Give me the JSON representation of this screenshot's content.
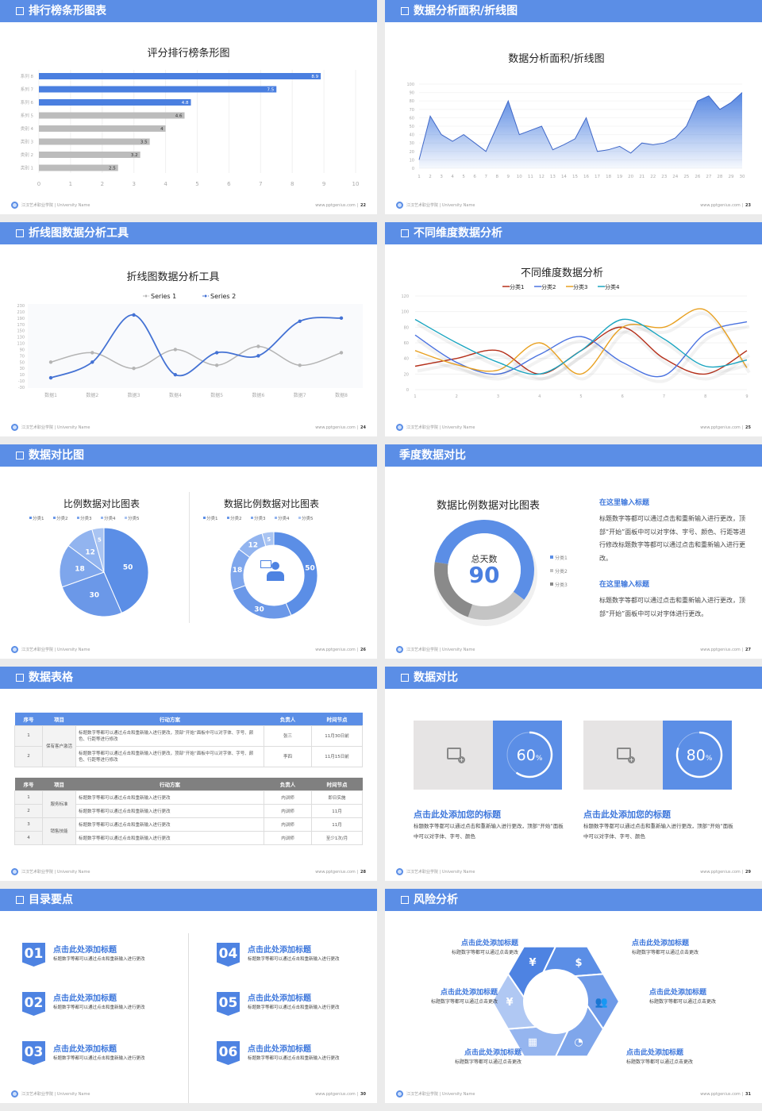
{
  "footer": {
    "school": "江汉艺术职业学院 | University Name",
    "url": "www.pptgenius.com"
  },
  "slides": [
    {
      "header": "排行榜条形图表",
      "page": "22"
    },
    {
      "header": "数据分析面积/折线图",
      "page": "23"
    },
    {
      "header": "折线图数据分析工具",
      "page": "24"
    },
    {
      "header": "不同维度数据分析",
      "page": "25"
    },
    {
      "header": "数据对比图",
      "page": "26"
    },
    {
      "header": "季度数据对比",
      "page": "27"
    },
    {
      "header": "数据表格",
      "page": "28"
    },
    {
      "header": "数据对比",
      "page": "29"
    },
    {
      "header": "目录要点",
      "page": "30"
    },
    {
      "header": "风险分析",
      "page": "31"
    }
  ],
  "chart_data": [
    {
      "type": "bar",
      "title": "评分排行榜条形图",
      "categories": [
        "系列 8",
        "系列 7",
        "系列 6",
        "系列 5",
        "类别 4",
        "类别 3",
        "类别 2",
        "类别 1"
      ],
      "values": [
        8.9,
        7.5,
        4.8,
        4.6,
        4,
        3.5,
        3.2,
        2.5
      ],
      "highlight_color": "#4a7fe0",
      "base_color": "#bcbcbc",
      "xlim": [
        0,
        10
      ],
      "xticks": [
        0,
        1,
        2,
        3,
        4,
        5,
        6,
        7,
        8,
        9,
        10
      ],
      "grid": true
    },
    {
      "type": "area",
      "title": "数据分析面积/折线图",
      "x": [
        1,
        2,
        3,
        4,
        5,
        6,
        7,
        8,
        9,
        10,
        11,
        12,
        13,
        14,
        15,
        16,
        17,
        18,
        19,
        20,
        21,
        22,
        23,
        24,
        25,
        26,
        27,
        28,
        29,
        30
      ],
      "values": [
        10,
        62,
        40,
        32,
        40,
        30,
        20,
        50,
        80,
        40,
        45,
        50,
        22,
        28,
        35,
        60,
        20,
        22,
        26,
        18,
        30,
        28,
        30,
        36,
        50,
        80,
        86,
        70,
        78,
        90
      ],
      "ylim": [
        0,
        100
      ],
      "yticks": [
        0,
        10,
        20,
        30,
        40,
        50,
        60,
        70,
        80,
        90,
        100
      ],
      "color": "#4a7fe0"
    },
    {
      "type": "line",
      "title": "折线图数据分析工具",
      "categories": [
        "数据1",
        "数据2",
        "数据3",
        "数据4",
        "数据5",
        "数据6",
        "数据7",
        "数据8"
      ],
      "series": [
        {
          "name": "Series 1",
          "values": [
            50,
            80,
            30,
            90,
            40,
            100,
            40,
            80
          ],
          "color": "#b4b4b4"
        },
        {
          "name": "Series 2",
          "values": [
            0,
            50,
            200,
            10,
            80,
            70,
            180,
            190
          ],
          "color": "#4472d4"
        }
      ],
      "ylim": [
        -30,
        230
      ],
      "yticks": [
        -30,
        -10,
        10,
        30,
        50,
        70,
        90,
        110,
        130,
        150,
        170,
        190,
        210,
        230
      ],
      "legend": "top"
    },
    {
      "type": "line",
      "title": "不同维度数据分析",
      "categories": [
        "1",
        "2",
        "3",
        "4",
        "5",
        "6",
        "7",
        "8",
        "9"
      ],
      "series": [
        {
          "name": "分类1",
          "values": [
            30,
            40,
            50,
            20,
            50,
            80,
            40,
            20,
            50
          ],
          "color": "#b5301b"
        },
        {
          "name": "分类2",
          "values": [
            70,
            35,
            20,
            45,
            68,
            35,
            18,
            72,
            87
          ],
          "color": "#4a72e0"
        },
        {
          "name": "分类3",
          "values": [
            50,
            32,
            25,
            60,
            20,
            80,
            80,
            102,
            28
          ],
          "color": "#e8a020"
        },
        {
          "name": "分类4",
          "values": [
            90,
            60,
            35,
            20,
            50,
            90,
            65,
            30,
            38
          ],
          "color": "#1ba5c0"
        }
      ],
      "ylim": [
        0,
        120
      ],
      "yticks": [
        0,
        20,
        40,
        60,
        80,
        100,
        120
      ],
      "legend": "top"
    },
    {
      "type": "pie",
      "title": "比例数据对比图表",
      "categories": [
        "分类1",
        "分类2",
        "分类3",
        "分类4",
        "分类5"
      ],
      "values": [
        50,
        30,
        18,
        12,
        5
      ],
      "colors": [
        "#5b8ee6",
        "#6b98e8",
        "#7ea6ec",
        "#92b4ef",
        "#a9c4f2"
      ],
      "legend": "top"
    },
    {
      "type": "pie",
      "donut": true,
      "title": "数据比例数据对比图表",
      "categories": [
        "分类1",
        "分类2",
        "分类3",
        "分类4",
        "分类5"
      ],
      "values": [
        50,
        30,
        18,
        12,
        5
      ],
      "colors": [
        "#5b8ee6",
        "#6b98e8",
        "#7ea6ec",
        "#92b4ef",
        "#a9c4f2"
      ],
      "legend": "top"
    },
    {
      "type": "pie",
      "donut": true,
      "title": "数据比例数据对比图表",
      "center_label": "总天数",
      "center_value": "90",
      "categories": [
        "分类1",
        "分类2",
        "分类3"
      ],
      "values": [
        52,
        18,
        20
      ],
      "colors": [
        "#5b8ee6",
        "#c4c4c4",
        "#8a8a8a"
      ],
      "legend": "right"
    }
  ],
  "quarter": {
    "items": [
      {
        "title": "在这里输入标题",
        "text": "标题数字等都可以通过点击和重新输入进行更改，顶部“开始”面板中可以对字体、字号、颜色、行距等进行修改标题数字等都可以通过点击和重新输入进行更改。"
      },
      {
        "title": "在这里输入标题",
        "text": "标题数字等都可以通过点击和重新输入进行更改，顶部“开始”面板中可以对字体进行更改。"
      }
    ]
  },
  "tables": {
    "headers": [
      "序号",
      "项目",
      "行动方案",
      "负责人",
      "时间节点"
    ],
    "t1": {
      "rows": [
        {
          "no": "1",
          "plan": "标题数字等都可以通过点击和重新输入进行更改，顶部“开始”面板中可以对字体、字号、颜色、行距等进行修改",
          "owner": "张三",
          "time": "11月30日前"
        },
        {
          "no": "2",
          "plan": "标题数字等都可以通过点击和重新输入进行更改，顶部“开始”面板中可以对字体、字号、颜色、行距等进行修改",
          "owner": "李四",
          "time": "11月15日前"
        }
      ],
      "project": "保有客户激活"
    },
    "t2": {
      "rows": [
        {
          "no": "1",
          "plan": "标题数字等都可以通过点击和重新输入进行更改",
          "owner": "内训师",
          "time": "即日实施"
        },
        {
          "no": "2",
          "plan": "标题数字等都可以通过点击和重新输入进行更改",
          "owner": "内训师",
          "time": "11月"
        },
        {
          "no": "3",
          "plan": "标题数字等都可以通过点击和重新输入进行更改",
          "owner": "内训师",
          "time": "11月"
        },
        {
          "no": "4",
          "plan": "标题数字等都可以通过点击和重新输入进行更改",
          "owner": "内训师",
          "time": "至少1次/月"
        }
      ],
      "project1": "服务标准",
      "project2": "销售技能"
    }
  },
  "compare": {
    "cards": [
      {
        "percent": 60,
        "value": "60",
        "unit": "%",
        "title": "点击此处添加您的标题",
        "text": "标题数字等都可以通过点击和重新输入进行更改，顶部“开始”面板中可以对字体、字号、颜色"
      },
      {
        "percent": 80,
        "value": "80",
        "unit": "%",
        "title": "点击此处添加您的标题",
        "text": "标题数字等都可以通过点击和重新输入进行更改，顶部“开始”面板中可以对字体、字号、颜色"
      }
    ],
    "image_icon": "image-add-icon"
  },
  "toc": {
    "items": [
      {
        "num": "01",
        "title": "点击此处添加标题",
        "text": "标题数字等都可以通过点击和重新输入进行更改"
      },
      {
        "num": "02",
        "title": "点击此处添加标题",
        "text": "标题数字等都可以通过点击和重新输入进行更改"
      },
      {
        "num": "03",
        "title": "点击此处添加标题",
        "text": "标题数字等都可以通过点击和重新输入进行更改"
      },
      {
        "num": "04",
        "title": "点击此处添加标题",
        "text": "标题数字等都可以通过点击和重新输入进行更改"
      },
      {
        "num": "05",
        "title": "点击此处添加标题",
        "text": "标题数字等都可以通过点击和重新输入进行更改"
      },
      {
        "num": "06",
        "title": "点击此处添加标题",
        "text": "标题数字等都可以通过点击和重新输入进行更改"
      }
    ]
  },
  "risk": {
    "items": [
      {
        "title": "点击此处添加标题",
        "text": "标题数字等都可以通过点击更改"
      },
      {
        "title": "点击此处添加标题",
        "text": "标题数字等都可以通过点击更改"
      },
      {
        "title": "点击此处添加标题",
        "text": "标题数字等都可以通过点击更改"
      },
      {
        "title": "点击此处添加标题",
        "text": "标题数字等都可以通过点击更改"
      },
      {
        "title": "点击此处添加标题",
        "text": "标题数字等都可以通过点击更改"
      },
      {
        "title": "点击此处添加标题",
        "text": "标题数字等都可以通过点击更改"
      }
    ],
    "icons": [
      "money-bag-icon",
      "coins-icon",
      "users-icon",
      "pie-chart-icon",
      "building-icon",
      "hand-money-icon"
    ]
  },
  "colors": {
    "accent": "#5b8ee6",
    "heading": "#3f78dc"
  }
}
